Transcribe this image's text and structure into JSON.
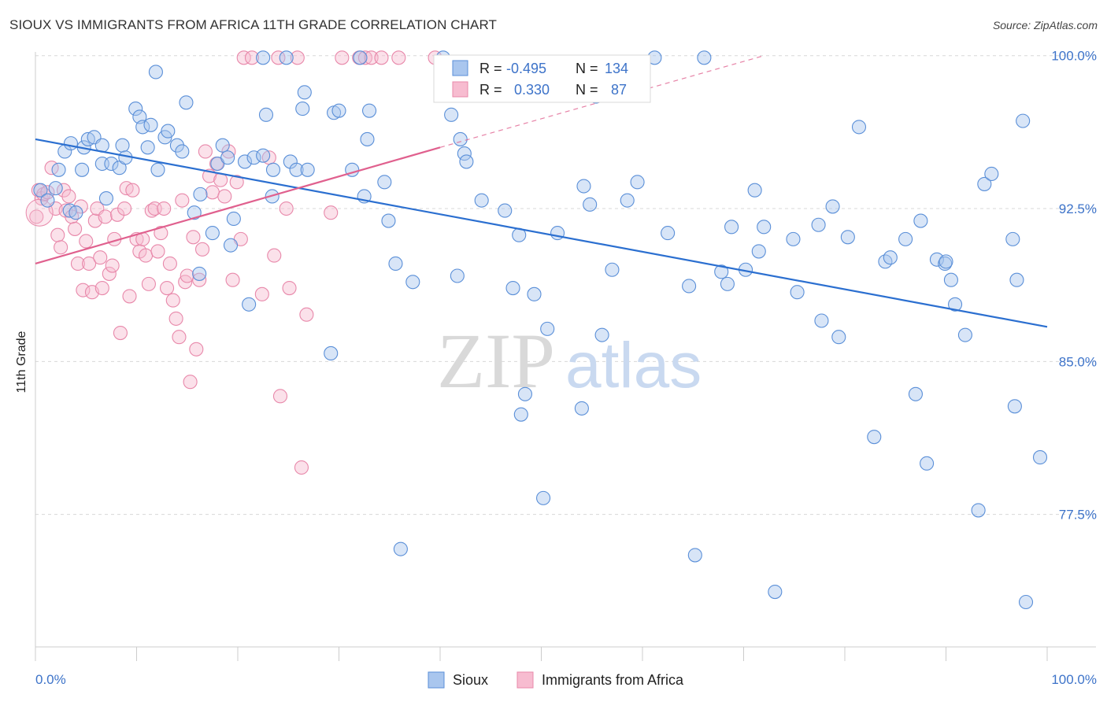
{
  "title": "SIOUX VS IMMIGRANTS FROM AFRICA 11TH GRADE CORRELATION CHART",
  "source": "Source: ZipAtlas.com",
  "watermark": {
    "zip": "ZIP",
    "atlas": "atlas"
  },
  "legend_box": {
    "rows": [
      {
        "r_label": "R =",
        "r_value": "-0.495",
        "n_label": "N =",
        "n_value": "134"
      },
      {
        "r_label": "R =",
        "r_value": "0.330",
        "n_label": "N =",
        "n_value": "87"
      }
    ]
  },
  "bottom_legend": [
    "Sioux",
    "Immigrants from Africa"
  ],
  "chart_data": {
    "type": "scatter",
    "title": "SIOUX VS IMMIGRANTS FROM AFRICA 11TH GRADE CORRELATION CHART",
    "xlabel": "",
    "ylabel": "11th Grade",
    "xlim": [
      0,
      100
    ],
    "ylim": [
      71,
      100.8
    ],
    "x_tick_labels": [
      "0.0%",
      "100.0%"
    ],
    "y_ticks": [
      77.5,
      85.0,
      92.5,
      100.0
    ],
    "y_tick_labels": [
      "77.5%",
      "85.0%",
      "92.5%",
      "100.0%"
    ],
    "grid": "horizontal dashed",
    "legend_position": "top-center",
    "colors": {
      "sioux_fill": "#a9c6ee",
      "sioux_edge": "#5a8fd8",
      "sioux_line": "#2b6fd0",
      "africa_fill": "#f7bcd0",
      "africa_edge": "#e888aa",
      "africa_line": "#e0608e",
      "tick_text": "#3d73c9",
      "grid": "#d8d8d8"
    },
    "series": [
      {
        "name": "Sioux",
        "stats": {
          "R": -0.495,
          "N": 134
        },
        "trend": {
          "x": [
            0,
            100
          ],
          "y": [
            95.9,
            86.7
          ]
        },
        "points": [
          [
            0.5,
            93.4
          ],
          [
            1.2,
            92.9
          ],
          [
            2.0,
            93.5
          ],
          [
            2.3,
            94.4
          ],
          [
            2.9,
            95.3
          ],
          [
            3.5,
            95.7
          ],
          [
            3.4,
            92.4
          ],
          [
            4.0,
            92.3
          ],
          [
            4.6,
            94.4
          ],
          [
            4.8,
            95.5
          ],
          [
            5.2,
            95.9
          ],
          [
            5.8,
            96.0
          ],
          [
            6.6,
            95.6
          ],
          [
            6.6,
            94.7
          ],
          [
            7.0,
            93.0
          ],
          [
            7.5,
            94.7
          ],
          [
            8.3,
            94.5
          ],
          [
            8.6,
            95.6
          ],
          [
            8.9,
            95.0
          ],
          [
            9.9,
            97.4
          ],
          [
            10.3,
            97.0
          ],
          [
            10.6,
            96.5
          ],
          [
            11.1,
            95.5
          ],
          [
            11.4,
            96.6
          ],
          [
            11.9,
            99.2
          ],
          [
            12.1,
            94.4
          ],
          [
            12.8,
            96.0
          ],
          [
            13.1,
            96.3
          ],
          [
            14.0,
            95.6
          ],
          [
            14.5,
            95.3
          ],
          [
            14.9,
            97.7
          ],
          [
            15.7,
            92.3
          ],
          [
            16.3,
            93.2
          ],
          [
            16.2,
            89.3
          ],
          [
            17.5,
            91.3
          ],
          [
            18.0,
            94.7
          ],
          [
            18.5,
            95.6
          ],
          [
            19.0,
            95.0
          ],
          [
            19.3,
            90.7
          ],
          [
            19.6,
            92.0
          ],
          [
            20.7,
            94.8
          ],
          [
            21.1,
            87.8
          ],
          [
            21.6,
            95.0
          ],
          [
            22.5,
            95.1
          ],
          [
            22.5,
            99.9
          ],
          [
            22.8,
            97.1
          ],
          [
            23.4,
            93.1
          ],
          [
            23.5,
            94.4
          ],
          [
            24.8,
            99.9
          ],
          [
            25.2,
            94.8
          ],
          [
            25.8,
            94.4
          ],
          [
            26.4,
            97.4
          ],
          [
            26.6,
            98.2
          ],
          [
            26.9,
            94.4
          ],
          [
            29.2,
            85.4
          ],
          [
            29.5,
            97.2
          ],
          [
            30.0,
            97.3
          ],
          [
            31.3,
            94.4
          ],
          [
            32.1,
            99.9
          ],
          [
            32.5,
            93.1
          ],
          [
            32.8,
            95.9
          ],
          [
            33.0,
            97.3
          ],
          [
            34.5,
            93.8
          ],
          [
            34.9,
            91.9
          ],
          [
            35.6,
            89.8
          ],
          [
            36.1,
            75.8
          ],
          [
            37.3,
            88.9
          ],
          [
            40.3,
            99.9
          ],
          [
            41.1,
            97.1
          ],
          [
            41.7,
            89.2
          ],
          [
            42.0,
            95.9
          ],
          [
            42.4,
            95.2
          ],
          [
            42.6,
            94.8
          ],
          [
            44.1,
            92.9
          ],
          [
            46.4,
            92.4
          ],
          [
            47.2,
            88.6
          ],
          [
            47.8,
            91.2
          ],
          [
            48.0,
            82.4
          ],
          [
            48.4,
            83.4
          ],
          [
            49.3,
            88.3
          ],
          [
            50.2,
            78.3
          ],
          [
            50.6,
            86.6
          ],
          [
            51.6,
            91.3
          ],
          [
            54.0,
            82.7
          ],
          [
            54.2,
            93.6
          ],
          [
            54.8,
            92.7
          ],
          [
            55.4,
            98.0
          ],
          [
            56.0,
            86.3
          ],
          [
            57.0,
            89.5
          ],
          [
            58.5,
            92.9
          ],
          [
            59.5,
            93.8
          ],
          [
            61.2,
            99.9
          ],
          [
            62.5,
            91.3
          ],
          [
            64.6,
            88.7
          ],
          [
            65.2,
            75.5
          ],
          [
            66.1,
            99.9
          ],
          [
            67.8,
            89.4
          ],
          [
            68.4,
            88.8
          ],
          [
            68.8,
            91.6
          ],
          [
            70.2,
            89.5
          ],
          [
            71.1,
            93.4
          ],
          [
            71.5,
            90.4
          ],
          [
            72.0,
            91.6
          ],
          [
            73.1,
            73.7
          ],
          [
            74.9,
            91.0
          ],
          [
            75.3,
            88.4
          ],
          [
            77.4,
            91.7
          ],
          [
            77.7,
            87.0
          ],
          [
            78.8,
            92.6
          ],
          [
            79.4,
            86.2
          ],
          [
            80.3,
            91.1
          ],
          [
            81.4,
            96.5
          ],
          [
            82.9,
            81.3
          ],
          [
            84.0,
            89.9
          ],
          [
            84.5,
            90.1
          ],
          [
            86.0,
            91.0
          ],
          [
            87.0,
            83.4
          ],
          [
            87.5,
            91.9
          ],
          [
            88.1,
            80.0
          ],
          [
            89.1,
            90.0
          ],
          [
            89.9,
            89.8
          ],
          [
            90.0,
            89.9
          ],
          [
            90.5,
            89.0
          ],
          [
            90.9,
            87.8
          ],
          [
            91.9,
            86.3
          ],
          [
            93.2,
            77.7
          ],
          [
            93.8,
            93.7
          ],
          [
            94.5,
            94.2
          ],
          [
            96.6,
            91.0
          ],
          [
            96.8,
            82.8
          ],
          [
            97.6,
            96.8
          ],
          [
            97.9,
            73.2
          ],
          [
            99.3,
            80.3
          ],
          [
            97.0,
            89.0
          ]
        ]
      },
      {
        "name": "Immigrants from Africa",
        "stats": {
          "R": 0.33,
          "N": 87
        },
        "trend": {
          "x": [
            0,
            40
          ],
          "y": [
            89.8,
            95.5
          ]
        },
        "trend_extension": {
          "x": [
            40,
            72
          ],
          "y": [
            95.5,
            100.0
          ]
        },
        "points": [
          [
            0.1,
            92.1
          ],
          [
            0.3,
            93.4
          ],
          [
            0.6,
            93.0
          ],
          [
            0.8,
            93.2
          ],
          [
            1.2,
            93.3
          ],
          [
            1.6,
            94.5
          ],
          [
            2.0,
            92.5
          ],
          [
            2.2,
            91.2
          ],
          [
            2.5,
            90.6
          ],
          [
            2.8,
            93.4
          ],
          [
            3.0,
            92.4
          ],
          [
            3.3,
            93.1
          ],
          [
            3.6,
            92.1
          ],
          [
            3.9,
            91.5
          ],
          [
            4.2,
            89.8
          ],
          [
            4.5,
            92.6
          ],
          [
            4.7,
            88.5
          ],
          [
            5.0,
            90.9
          ],
          [
            5.3,
            89.8
          ],
          [
            5.6,
            88.4
          ],
          [
            5.9,
            91.9
          ],
          [
            6.1,
            92.5
          ],
          [
            6.4,
            90.1
          ],
          [
            6.6,
            88.6
          ],
          [
            6.9,
            92.1
          ],
          [
            7.3,
            89.3
          ],
          [
            7.6,
            89.7
          ],
          [
            7.8,
            91.0
          ],
          [
            8.1,
            92.2
          ],
          [
            8.4,
            86.4
          ],
          [
            8.8,
            92.5
          ],
          [
            9.0,
            93.5
          ],
          [
            9.3,
            88.2
          ],
          [
            9.6,
            93.4
          ],
          [
            10.0,
            91.0
          ],
          [
            10.3,
            90.4
          ],
          [
            10.6,
            91.0
          ],
          [
            10.9,
            90.2
          ],
          [
            11.2,
            88.8
          ],
          [
            11.5,
            92.4
          ],
          [
            11.8,
            92.5
          ],
          [
            12.1,
            90.4
          ],
          [
            12.4,
            91.3
          ],
          [
            12.7,
            92.5
          ],
          [
            13.0,
            88.6
          ],
          [
            13.3,
            89.8
          ],
          [
            13.6,
            88.0
          ],
          [
            13.9,
            87.1
          ],
          [
            14.2,
            86.2
          ],
          [
            14.5,
            92.9
          ],
          [
            14.8,
            88.9
          ],
          [
            15.0,
            89.2
          ],
          [
            15.3,
            84.0
          ],
          [
            15.6,
            91.1
          ],
          [
            15.9,
            85.6
          ],
          [
            16.2,
            89.0
          ],
          [
            16.5,
            90.5
          ],
          [
            16.8,
            95.3
          ],
          [
            17.2,
            94.1
          ],
          [
            17.5,
            93.3
          ],
          [
            17.9,
            94.7
          ],
          [
            18.3,
            93.9
          ],
          [
            18.7,
            93.1
          ],
          [
            19.1,
            95.3
          ],
          [
            19.5,
            89.0
          ],
          [
            19.9,
            93.8
          ],
          [
            20.3,
            91.0
          ],
          [
            20.6,
            99.9
          ],
          [
            21.4,
            99.9
          ],
          [
            22.4,
            88.3
          ],
          [
            23.1,
            95.0
          ],
          [
            23.6,
            90.2
          ],
          [
            24.0,
            99.9
          ],
          [
            24.2,
            83.3
          ],
          [
            24.8,
            92.5
          ],
          [
            25.1,
            88.6
          ],
          [
            25.9,
            99.9
          ],
          [
            26.3,
            79.8
          ],
          [
            26.8,
            87.3
          ],
          [
            29.2,
            92.3
          ],
          [
            30.3,
            99.9
          ],
          [
            32.0,
            99.9
          ],
          [
            32.6,
            99.9
          ],
          [
            33.2,
            99.9
          ],
          [
            34.2,
            99.9
          ],
          [
            35.9,
            99.9
          ],
          [
            39.5,
            99.9
          ]
        ]
      }
    ]
  }
}
